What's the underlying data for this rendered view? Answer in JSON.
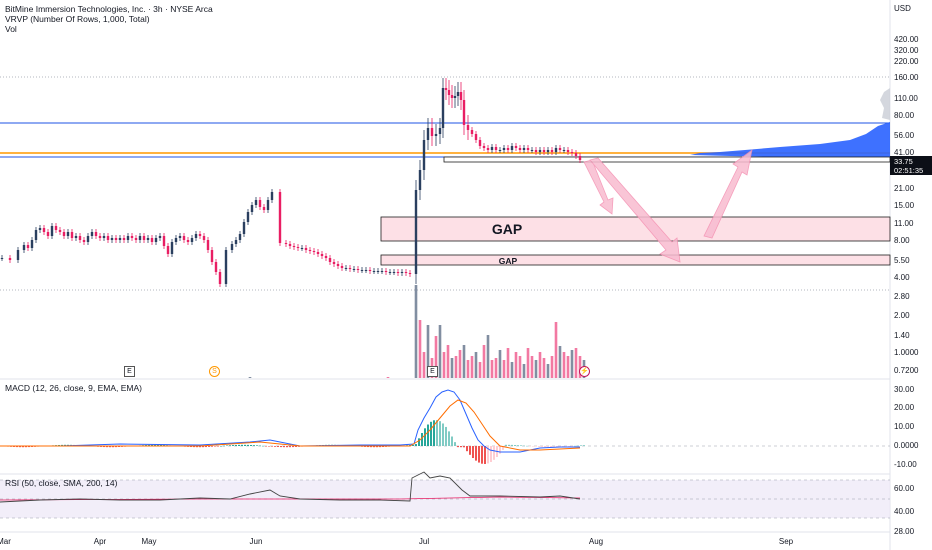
{
  "header": {
    "title": "BitMine Immersion Technologies, Inc. · 3h · NYSE Arca",
    "vrvp": "VRVP (Number Of Rows, 1,000, Total)",
    "vol": "Vol",
    "currency": "USD"
  },
  "indicators": {
    "macd": "MACD (12, 26, close, 9, EMA, EMA)",
    "rsi": "RSI (50, close, SMA, 200, 14)"
  },
  "price_box": {
    "price": "33.75",
    "countdown": "02:51:35"
  },
  "annotations": {
    "gap_big": "GAP",
    "gap_small": "GAP"
  },
  "markers": {
    "earnings": "E",
    "split": "S",
    "dividend": "⚡"
  },
  "price_axis": [
    "420.00",
    "320.00",
    "220.00",
    "160.00",
    "110.00",
    "80.00",
    "56.00",
    "41.00",
    "21.00",
    "15.00",
    "11.00",
    "8.00",
    "5.50",
    "4.00",
    "2.80",
    "2.00",
    "1.40",
    "1.0000",
    "0.7200"
  ],
  "macd_axis": [
    "30.00",
    "20.00",
    "10.00",
    "0.0000",
    "-10.00"
  ],
  "rsi_axis": [
    "60.00",
    "40.00",
    "28.00"
  ],
  "time_axis": [
    "Mar",
    "Apr",
    "May",
    "Jun",
    "Jul",
    "Aug",
    "Sep"
  ],
  "colors": {
    "up": "#2a3f5f",
    "down": "#e91e63",
    "hline_blue": "#1e53e5",
    "hline_orange": "#ff9800",
    "gap_fill": "#fde0e6",
    "arrow": "#f48fb1",
    "macd": "#2962ff",
    "signal": "#ff6d00",
    "rsi": "#7e57c2"
  }
}
